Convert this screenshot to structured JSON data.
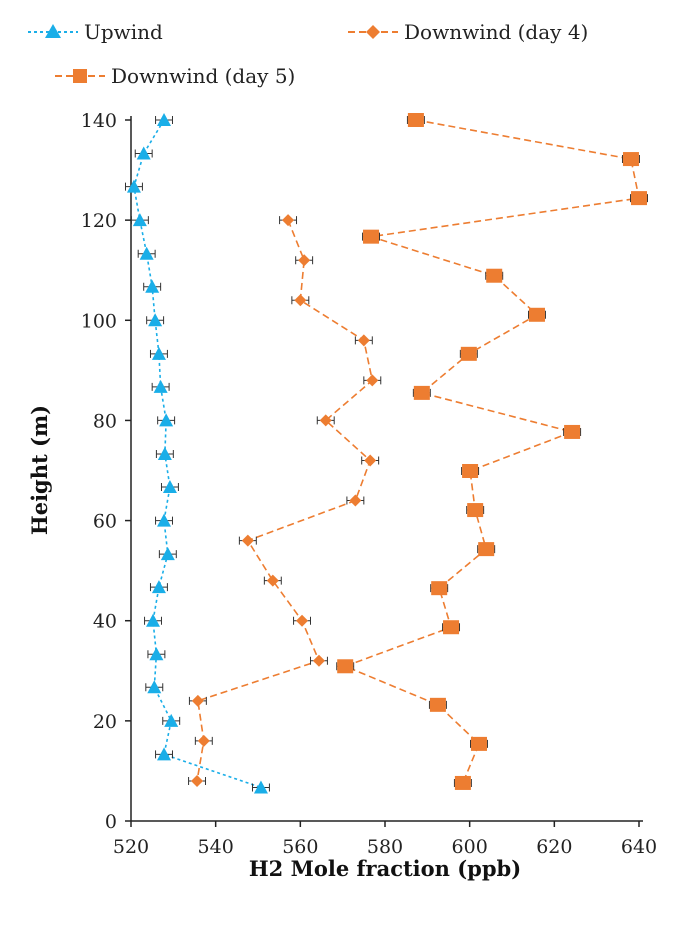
{
  "chart_data": {
    "type": "scatter",
    "title": "",
    "xlabel": "H2 Mole fraction (ppb)",
    "ylabel": "Height (m)",
    "xlim": [
      520,
      640
    ],
    "ylim": [
      0,
      140
    ],
    "xticks": [
      520,
      540,
      560,
      580,
      600,
      620,
      640
    ],
    "yticks": [
      0,
      20,
      40,
      60,
      80,
      100,
      120,
      140
    ],
    "grid": false,
    "legend_position": "top",
    "colors": {
      "upwind": "#1AAEE8",
      "downwind": "#ED7D31"
    },
    "series": [
      {
        "name": "Upwind",
        "marker": "triangle",
        "color": "#1AAEE8",
        "x": [
          527.8,
          523.0,
          520.7,
          522.1,
          523.7,
          525.0,
          525.7,
          526.6,
          527.0,
          528.3,
          528.0,
          529.2,
          527.8,
          528.7,
          526.6,
          525.2,
          526.0,
          525.5,
          529.5,
          527.8,
          550.7
        ],
        "y": [
          140,
          133.3,
          126.7,
          120,
          113.3,
          106.7,
          100,
          93.3,
          86.7,
          80,
          73.3,
          66.7,
          60,
          53.3,
          46.7,
          40,
          33.3,
          26.7,
          20,
          13.3,
          6.7
        ]
      },
      {
        "name": "Downwind (day 4)",
        "marker": "diamond",
        "color": "#ED7D31",
        "x": [
          557.1,
          560.9,
          560.0,
          575.0,
          577.0,
          566.0,
          576.5,
          573.0,
          547.6,
          553.5,
          560.4,
          564.4,
          535.8,
          537.2,
          535.6
        ],
        "y": [
          120,
          112,
          104,
          96,
          88,
          80,
          72,
          64,
          56,
          48,
          40,
          32,
          24,
          16,
          8
        ]
      },
      {
        "name": "Downwind (day 5)",
        "marker": "square",
        "color": "#ED7D31",
        "x": [
          587.3,
          638.1,
          640.0,
          576.7,
          605.8,
          615.9,
          599.8,
          588.7,
          624.2,
          600.1,
          601.3,
          603.9,
          592.8,
          595.6,
          570.6,
          592.5,
          602.2,
          598.4
        ],
        "y": [
          140,
          132.2,
          124.4,
          116.7,
          108.9,
          101.1,
          93.3,
          85.5,
          77.7,
          69.9,
          62.1,
          54.3,
          46.5,
          38.7,
          30.9,
          23.2,
          15.4,
          7.6
        ]
      }
    ],
    "error_bar_ppb": 2
  }
}
